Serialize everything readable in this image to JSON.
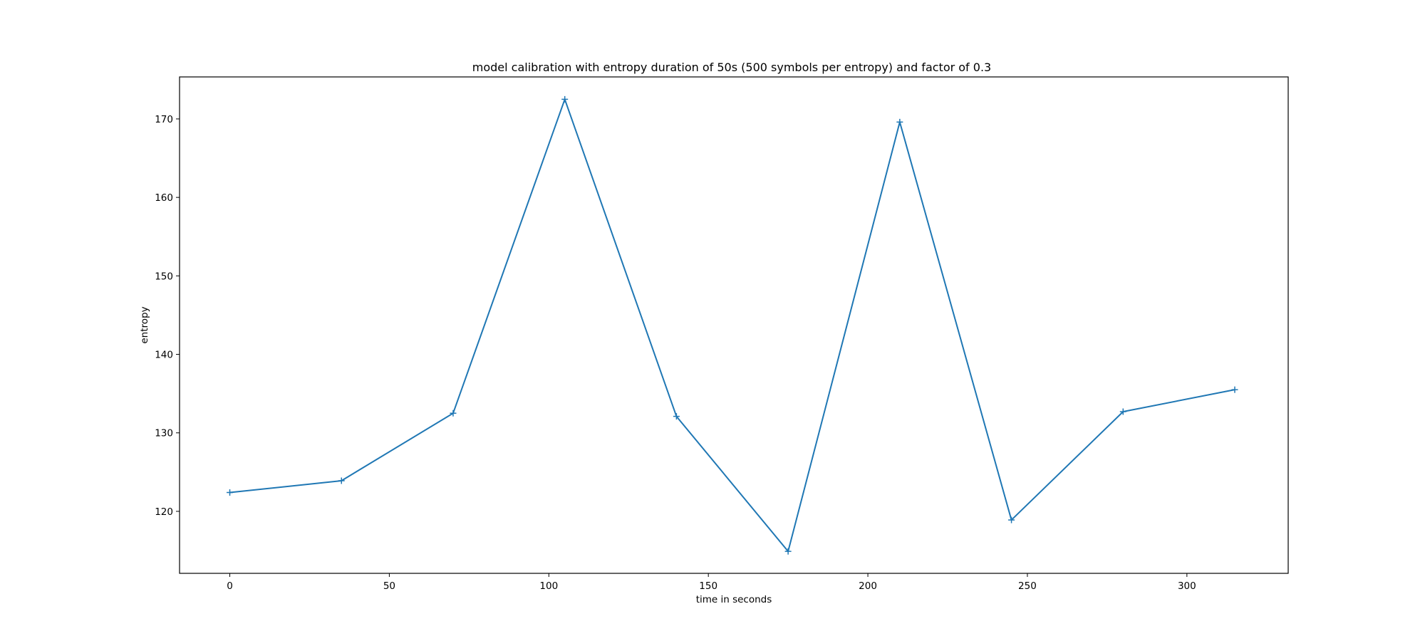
{
  "chart_data": {
    "type": "line",
    "title": "model calibration with entropy duration of 50s (500 symbols per entropy) and  factor of 0.3",
    "xlabel": "time in seconds",
    "ylabel": "entropy",
    "xlim": [
      -15.75,
      331.75
    ],
    "ylim": [
      112.1,
      175.35
    ],
    "xticks": [
      0,
      50,
      100,
      150,
      200,
      250,
      300
    ],
    "yticks": [
      120,
      130,
      140,
      150,
      160,
      170
    ],
    "grid": false,
    "legend": "none",
    "marker": "plus",
    "colors": {
      "series": "#1f77b4",
      "axes": "#000000",
      "background": "#ffffff"
    },
    "series": [
      {
        "x": [
          0,
          35,
          70,
          105,
          140,
          175,
          210,
          245,
          280,
          315
        ],
        "y": [
          122.4,
          123.9,
          132.5,
          172.5,
          132.1,
          114.9,
          169.6,
          118.9,
          132.7,
          135.5
        ]
      }
    ]
  }
}
